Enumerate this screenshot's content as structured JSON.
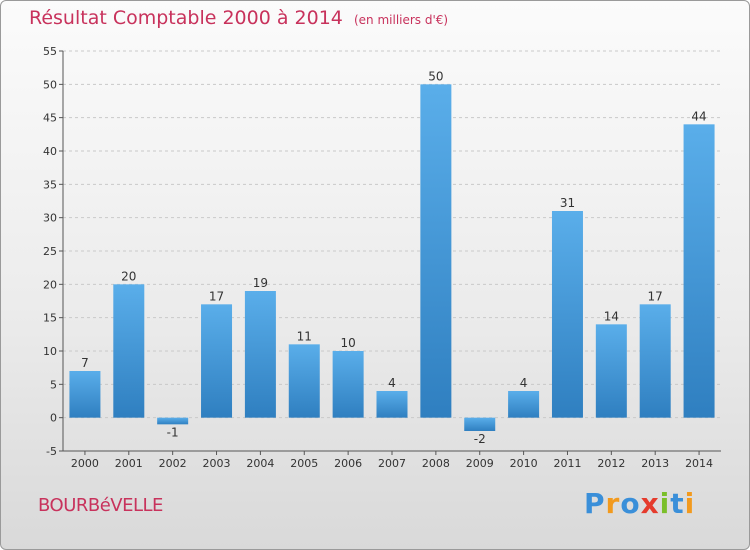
{
  "title": "Résultat Comptable 2000 à 2014",
  "unit_note": "(en milliers d'€)",
  "commune": "BOURBéVELLE",
  "logo": {
    "text": "Proxiti",
    "letters": [
      {
        "ch": "P",
        "color": "#3a8fd9"
      },
      {
        "ch": "r",
        "color": "#f29a1e"
      },
      {
        "ch": "o",
        "color": "#3a8fd9"
      },
      {
        "ch": "x",
        "color": "#e53b2c"
      },
      {
        "ch": "i",
        "color": "#7bbf2a"
      },
      {
        "ch": "t",
        "color": "#3a8fd9"
      },
      {
        "ch": "i",
        "color": "#f29a1e"
      }
    ]
  },
  "colors": {
    "bar_top": "#5aaeea",
    "bar_bottom": "#2f7fc0",
    "accent": "#c8325c"
  },
  "chart_data": {
    "type": "bar",
    "categories": [
      "2000",
      "2001",
      "2002",
      "2003",
      "2004",
      "2005",
      "2006",
      "2007",
      "2008",
      "2009",
      "2010",
      "2011",
      "2012",
      "2013",
      "2014"
    ],
    "values": [
      7,
      20,
      -1,
      17,
      19,
      11,
      10,
      4,
      50,
      -2,
      4,
      31,
      14,
      17,
      44
    ],
    "data_labels": [
      "7",
      "20",
      "-1",
      "17",
      "19",
      "11",
      "10",
      "4",
      "50",
      "-2",
      "4",
      "31",
      "14",
      "17",
      "44"
    ],
    "yticks": [
      -5,
      0,
      5,
      10,
      15,
      20,
      25,
      30,
      35,
      40,
      45,
      50,
      55
    ],
    "ylim": [
      -5,
      55
    ],
    "grid": true,
    "title": "Résultat Comptable 2000 à 2014",
    "xlabel": "",
    "ylabel": ""
  }
}
